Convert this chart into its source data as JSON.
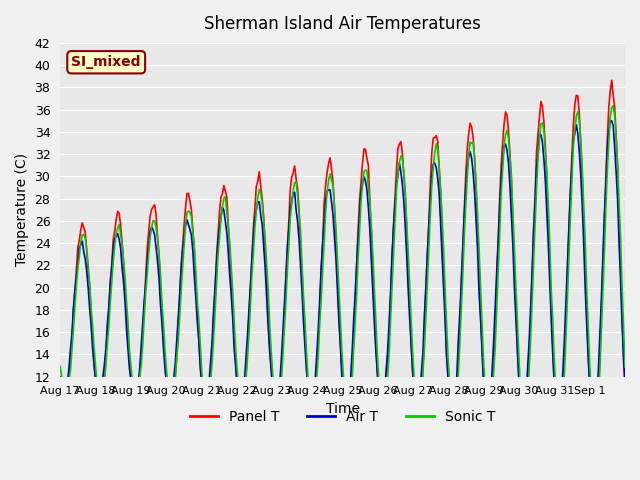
{
  "title": "Sherman Island Air Temperatures",
  "xlabel": "Time",
  "ylabel": "Temperature (C)",
  "ylim": [
    12,
    42
  ],
  "yticks": [
    12,
    14,
    16,
    18,
    20,
    22,
    24,
    26,
    28,
    30,
    32,
    34,
    36,
    38,
    40,
    42
  ],
  "annotation_text": "SI_mixed",
  "annotation_color": "#8B0000",
  "annotation_bg": "#FFFFCC",
  "line_colors": {
    "panel": "#FF0000",
    "air": "#0000CC",
    "sonic": "#00CC00"
  },
  "legend_labels": [
    "Panel T",
    "Air T",
    "Sonic T"
  ],
  "plot_bg": "#E8E8E8",
  "fig_bg": "#F0F0F0",
  "n_days": 16,
  "xtick_labels": [
    "Aug 17",
    "Aug 18",
    "Aug 19",
    "Aug 20",
    "Aug 21",
    "Aug 22",
    "Aug 23",
    "Aug 24",
    "Aug 25",
    "Aug 26",
    "Aug 27",
    "Aug 28",
    "Aug 29",
    "Aug 30",
    "Aug 31",
    "Sep 1"
  ]
}
